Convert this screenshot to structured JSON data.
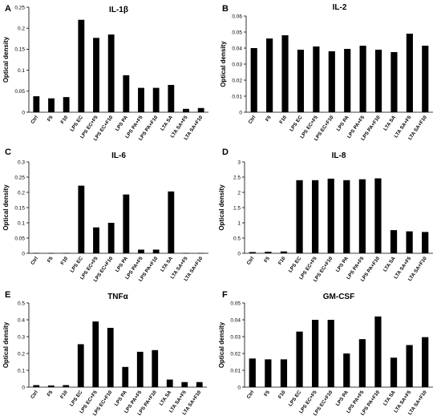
{
  "chart_data": [
    {
      "panel": "A",
      "type": "bar",
      "title": "IL-1β",
      "ylabel": "Optical density",
      "ylim": [
        0,
        0.25
      ],
      "yticks": [
        "0",
        "0.05",
        "0.1",
        "0.15",
        "0.2",
        "0.25"
      ],
      "categories": [
        "Ctrl",
        "F5",
        "F10",
        "LPS EC",
        "LPS EC+F5",
        "LPS EC+F10",
        "LPS PA",
        "LPS PA+F5",
        "LPS PA+F10",
        "LTA SA",
        "LTA SA+F5",
        "LTA SA+F10"
      ],
      "values": [
        0.038,
        0.033,
        0.036,
        0.22,
        0.177,
        0.185,
        0.088,
        0.058,
        0.058,
        0.065,
        0.008,
        0.01
      ]
    },
    {
      "panel": "B",
      "type": "bar",
      "title": "IL-2",
      "ylabel": "Optical density",
      "ylim": [
        0,
        0.06
      ],
      "yticks": [
        "0",
        "0.01",
        "0.02",
        "0.03",
        "0.04",
        "0.05",
        "0.06"
      ],
      "categories": [
        "Ctrl",
        "F5",
        "F10",
        "LPS EC",
        "LPS EC+F5",
        "LPS EC+F10",
        "LPS PA",
        "LPS PA+F5",
        "LPS PA+F10",
        "LTA SA",
        "LTA SA+F5",
        "LTA SA+F10"
      ],
      "values": [
        0.04,
        0.046,
        0.048,
        0.039,
        0.041,
        0.038,
        0.0395,
        0.0415,
        0.039,
        0.0375,
        0.049,
        0.0415
      ]
    },
    {
      "panel": "C",
      "type": "bar",
      "title": "IL-6",
      "ylabel": "Optical density",
      "ylim": [
        0,
        0.3
      ],
      "yticks": [
        "0",
        "0.05",
        "0.1",
        "0.15",
        "0.2",
        "0.25",
        "0.3"
      ],
      "categories": [
        "Ctrl",
        "F5",
        "F10",
        "LPS EC",
        "LPS EC+F5",
        "LPS EC+F10",
        "LPS PA",
        "LPS PA+F5",
        "LPS PA+F10",
        "LTA SA",
        "LTA SA+F5",
        "LTA SA+F10"
      ],
      "values": [
        0.001,
        0.001,
        0.001,
        0.222,
        0.085,
        0.1,
        0.193,
        0.012,
        0.012,
        0.203,
        0.001,
        0.001
      ]
    },
    {
      "panel": "D",
      "type": "bar",
      "title": "IL-8",
      "ylabel": "Optical density",
      "ylim": [
        0,
        3
      ],
      "yticks": [
        "0",
        "0.5",
        "1",
        "1.5",
        "2",
        "2.5",
        "3"
      ],
      "categories": [
        "Ctrl",
        "F5",
        "F10",
        "LPS EC",
        "LPS EC+F5",
        "LPS EC+F10",
        "LPS PA",
        "LPS PA+F5",
        "LPS PA+F10",
        "LTA SA",
        "LTA SA+F5",
        "LTA SA+F10"
      ],
      "values": [
        0.04,
        0.05,
        0.06,
        2.4,
        2.4,
        2.45,
        2.4,
        2.43,
        2.46,
        0.76,
        0.72,
        0.7
      ]
    },
    {
      "panel": "E",
      "type": "bar",
      "title": "TNFα",
      "ylabel": "Optical density",
      "ylim": [
        0,
        0.5
      ],
      "yticks": [
        "0",
        "0.1",
        "0.2",
        "0.3",
        "0.4",
        "0.5"
      ],
      "categories": [
        "Ctrl",
        "F5",
        "F10",
        "LPS EC",
        "LPS EC+F5",
        "LPS EC+F10",
        "LPS PA",
        "LPS PA+F5",
        "LPS PA+F10",
        "LTA SA",
        "LTA SA+F5",
        "LTA SA+F10"
      ],
      "values": [
        0.012,
        0.01,
        0.012,
        0.255,
        0.39,
        0.352,
        0.12,
        0.21,
        0.22,
        0.045,
        0.03,
        0.03
      ]
    },
    {
      "panel": "F",
      "type": "bar",
      "title": "GM-CSF",
      "ylabel": "Optical density",
      "ylim": [
        0,
        0.05
      ],
      "yticks": [
        "0",
        "0.01",
        "0.02",
        "0.03",
        "0.04",
        "0.05"
      ],
      "categories": [
        "Ctrl",
        "F5",
        "F10",
        "LPS EC",
        "LPS EC+F5",
        "LPS EC+F10",
        "LPS PA",
        "LPS PA+F5",
        "LPS PA+F10",
        "LTA SA",
        "LTA SA+F5",
        "LTA SA+F10"
      ],
      "values": [
        0.017,
        0.0165,
        0.0165,
        0.033,
        0.04,
        0.04,
        0.02,
        0.0285,
        0.042,
        0.0175,
        0.025,
        0.0297
      ]
    }
  ]
}
